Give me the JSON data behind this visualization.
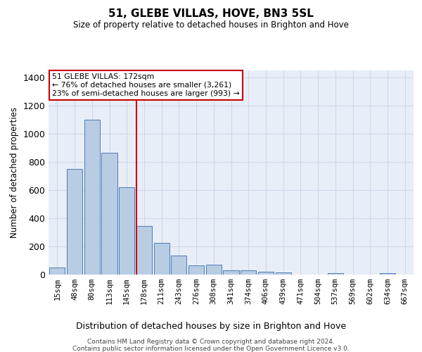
{
  "title": "51, GLEBE VILLAS, HOVE, BN3 5SL",
  "subtitle": "Size of property relative to detached houses in Brighton and Hove",
  "xlabel": "Distribution of detached houses by size in Brighton and Hove",
  "ylabel": "Number of detached properties",
  "footer_line1": "Contains HM Land Registry data © Crown copyright and database right 2024.",
  "footer_line2": "Contains public sector information licensed under the Open Government Licence v3.0.",
  "categories": [
    "15sqm",
    "48sqm",
    "80sqm",
    "113sqm",
    "145sqm",
    "178sqm",
    "211sqm",
    "243sqm",
    "276sqm",
    "308sqm",
    "341sqm",
    "374sqm",
    "406sqm",
    "439sqm",
    "471sqm",
    "504sqm",
    "537sqm",
    "569sqm",
    "602sqm",
    "634sqm",
    "667sqm"
  ],
  "values": [
    50,
    750,
    1100,
    865,
    620,
    345,
    225,
    135,
    65,
    70,
    30,
    30,
    22,
    13,
    0,
    0,
    12,
    0,
    0,
    12,
    0
  ],
  "bar_color": "#b8cce4",
  "bar_edge_color": "#4a7db4",
  "grid_color": "#d0d8e8",
  "background_color": "#e8eef8",
  "annotation_text": "51 GLEBE VILLAS: 172sqm\n← 76% of detached houses are smaller (3,261)\n23% of semi-detached houses are larger (993) →",
  "annotation_box_facecolor": "#ffffff",
  "annotation_box_edgecolor": "#cc0000",
  "vline_x_index": 4.55,
  "vline_color": "#cc0000",
  "ylim": [
    0,
    1450
  ],
  "yticks": [
    0,
    200,
    400,
    600,
    800,
    1000,
    1200,
    1400
  ]
}
